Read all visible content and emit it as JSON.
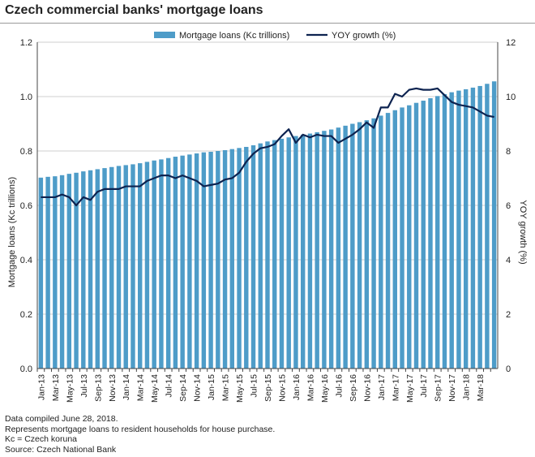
{
  "title": "Czech commercial banks' mortgage loans",
  "footer": {
    "compiled": "Data compiled June 28, 2018.",
    "note": "Represents mortgage loans to resident households for house purchase.",
    "abbr": "Kc = Czech koruna",
    "source": "Source: Czech National Bank"
  },
  "colors": {
    "bar": "#4e9cc8",
    "line": "#0d2350",
    "grid": "#cfcfcf",
    "axis": "#444444"
  },
  "chart_data": {
    "type": "bar",
    "title": "Czech commercial banks' mortgage loans",
    "xlabel": "",
    "ylabel": "Mortgage loans (Kc trillions)",
    "y2label": "YOY growth (%)",
    "ylim": [
      0,
      1.2
    ],
    "y2lim": [
      0,
      12
    ],
    "yticks": [
      "0.0",
      "0.2",
      "0.4",
      "0.6",
      "0.8",
      "1.0",
      "1.2"
    ],
    "y2ticks": [
      "0",
      "2",
      "4",
      "6",
      "8",
      "10",
      "12"
    ],
    "grid": "horizontal",
    "legend": "top-center",
    "categories": [
      "Jan-13",
      "Feb-13",
      "Mar-13",
      "Apr-13",
      "May-13",
      "Jun-13",
      "Jul-13",
      "Aug-13",
      "Sep-13",
      "Oct-13",
      "Nov-13",
      "Dec-13",
      "Jan-14",
      "Feb-14",
      "Mar-14",
      "Apr-14",
      "May-14",
      "Jun-14",
      "Jul-14",
      "Aug-14",
      "Sep-14",
      "Oct-14",
      "Nov-14",
      "Dec-14",
      "Jan-15",
      "Feb-15",
      "Mar-15",
      "Apr-15",
      "May-15",
      "Jun-15",
      "Jul-15",
      "Aug-15",
      "Sep-15",
      "Oct-15",
      "Nov-15",
      "Dec-15",
      "Jan-16",
      "Feb-16",
      "Mar-16",
      "Apr-16",
      "May-16",
      "Jun-16",
      "Jul-16",
      "Aug-16",
      "Sep-16",
      "Oct-16",
      "Nov-16",
      "Dec-16",
      "Jan-17",
      "Feb-17",
      "Mar-17",
      "Apr-17",
      "May-17",
      "Jun-17",
      "Jul-17",
      "Aug-17",
      "Sep-17",
      "Oct-17",
      "Nov-17",
      "Dec-17",
      "Jan-18",
      "Feb-18",
      "Mar-18",
      "Apr-18",
      "May-18"
    ],
    "tick_labels": [
      "Jan-13",
      "Mar-13",
      "May-13",
      "Jul-13",
      "Sep-13",
      "Nov-13",
      "Jan-14",
      "Mar-14",
      "May-14",
      "Jul-14",
      "Sep-14",
      "Nov-14",
      "Jan-15",
      "Mar-15",
      "May-15",
      "Jul-15",
      "Sep-15",
      "Nov-15",
      "Jan-16",
      "Mar-16",
      "May-16",
      "Jul-16",
      "Sep-16",
      "Nov-16",
      "Jan-17",
      "Mar-17",
      "May-17",
      "Jul-17",
      "Sep-17",
      "Nov-17",
      "Jan-18",
      "Mar-18"
    ],
    "series": [
      {
        "name": "Mortgage loans (Kc trillions)",
        "type": "bar",
        "axis": "left",
        "values": [
          0.702,
          0.705,
          0.707,
          0.711,
          0.716,
          0.72,
          0.725,
          0.729,
          0.733,
          0.737,
          0.741,
          0.745,
          0.748,
          0.751,
          0.755,
          0.76,
          0.765,
          0.769,
          0.774,
          0.779,
          0.783,
          0.787,
          0.791,
          0.795,
          0.797,
          0.8,
          0.803,
          0.807,
          0.811,
          0.815,
          0.821,
          0.828,
          0.835,
          0.84,
          0.845,
          0.85,
          0.855,
          0.86,
          0.864,
          0.869,
          0.874,
          0.879,
          0.886,
          0.893,
          0.9,
          0.906,
          0.913,
          0.92,
          0.93,
          0.94,
          0.95,
          0.96,
          0.968,
          0.977,
          0.985,
          0.994,
          1.002,
          1.009,
          1.016,
          1.022,
          1.027,
          1.033,
          1.039,
          1.047,
          1.056
        ]
      },
      {
        "name": "YOY growth (%)",
        "type": "line",
        "axis": "right",
        "values": [
          6.3,
          6.3,
          6.3,
          6.4,
          6.3,
          6.0,
          6.3,
          6.2,
          6.5,
          6.6,
          6.6,
          6.6,
          6.7,
          6.7,
          6.7,
          6.9,
          7.0,
          7.1,
          7.1,
          7.0,
          7.1,
          7.0,
          6.9,
          6.7,
          6.75,
          6.8,
          6.95,
          7.0,
          7.2,
          7.6,
          7.9,
          8.1,
          8.15,
          8.25,
          8.55,
          8.8,
          8.3,
          8.6,
          8.5,
          8.6,
          8.55,
          8.55,
          8.3,
          8.45,
          8.6,
          8.8,
          9.05,
          8.85,
          9.6,
          9.6,
          10.1,
          10.0,
          10.25,
          10.3,
          10.25,
          10.25,
          10.3,
          10.05,
          9.8,
          9.7,
          9.65,
          9.6,
          9.45,
          9.3,
          9.25
        ]
      }
    ]
  }
}
